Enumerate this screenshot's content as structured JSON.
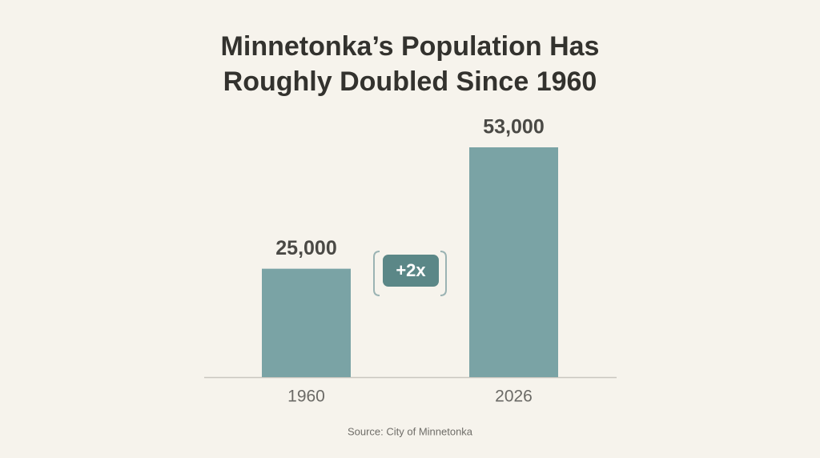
{
  "chart_data": {
    "type": "bar",
    "title": "Minnetonka’s Population Has Roughly Doubled Since 1960",
    "categories": [
      "1960",
      "2026"
    ],
    "values": [
      25000,
      53000
    ],
    "value_labels": [
      "25,000",
      "53,000"
    ],
    "color": "#7aa3a5",
    "annotation": "+2x",
    "source": "Source: City of Minnetonka"
  }
}
